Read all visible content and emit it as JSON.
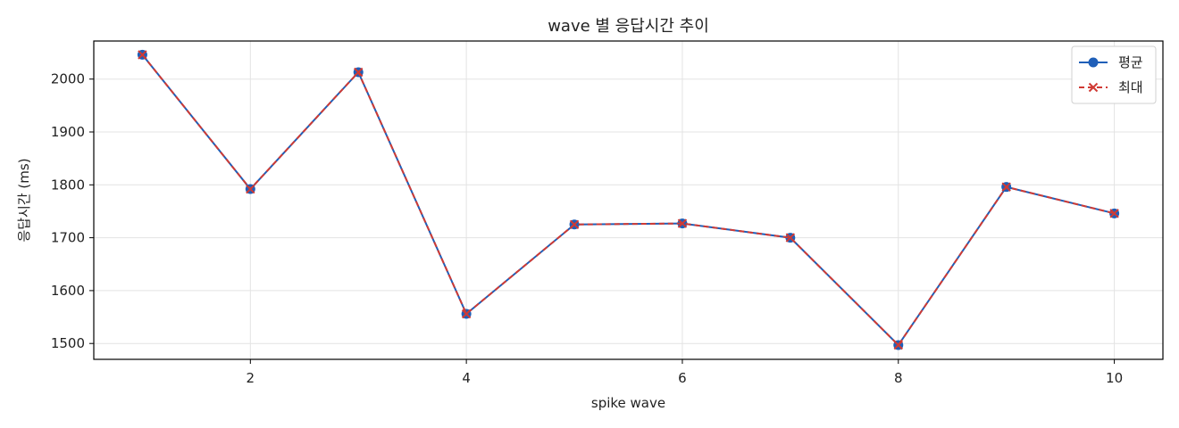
{
  "chart_data": {
    "type": "line",
    "title": "wave 별 응답시간 추이",
    "xlabel": "spike wave",
    "ylabel": "응답시간 (ms)",
    "x": [
      1,
      2,
      3,
      4,
      5,
      6,
      7,
      8,
      9,
      10
    ],
    "xlim": [
      0.55,
      10.45
    ],
    "ylim": [
      1470,
      2072
    ],
    "xticks": [
      2,
      4,
      6,
      8,
      10
    ],
    "yticks": [
      1500,
      1600,
      1700,
      1800,
      1900,
      2000
    ],
    "grid": true,
    "legend_position": "top-right",
    "series": [
      {
        "name": "평균",
        "values": [
          2046,
          1792,
          2013,
          1556,
          1725,
          1727,
          1700,
          1497,
          1796,
          1746
        ],
        "color": "#1f5fb8",
        "line_style": "solid",
        "marker": "circle"
      },
      {
        "name": "최대",
        "values": [
          2046,
          1792,
          2013,
          1556,
          1725,
          1727,
          1700,
          1497,
          1796,
          1746
        ],
        "color": "#d03a34",
        "line_style": "dashed",
        "marker": "x"
      }
    ]
  }
}
